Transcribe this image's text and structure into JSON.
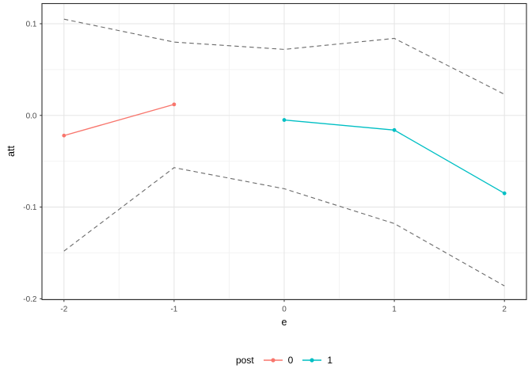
{
  "chart_data": {
    "type": "line",
    "title": "",
    "xlabel": "e",
    "ylabel": "att",
    "xlim": [
      -2.2,
      2.2
    ],
    "ylim": [
      -0.201,
      0.122
    ],
    "x_ticks": [
      -2,
      -1,
      0,
      1,
      2
    ],
    "x_tick_labels": [
      "-2",
      "-1",
      "0",
      "1",
      "2"
    ],
    "y_ticks": [
      0.1,
      0.0,
      -0.1,
      -0.2
    ],
    "y_tick_labels": [
      "0.1",
      "0.0",
      "-0.1",
      "-0.2"
    ],
    "grid": {
      "major": true,
      "minor": true
    },
    "legend": {
      "title": "post",
      "position": "bottom",
      "entries": [
        {
          "label": "0",
          "color": "#F8766D"
        },
        {
          "label": "1",
          "color": "#00BFC4"
        }
      ]
    },
    "series": [
      {
        "name": "post-0",
        "legend_label": "0",
        "type": "line+point",
        "color": "#F8766D",
        "dash": false,
        "x": [
          -2,
          -1
        ],
        "y": [
          -0.022,
          0.012
        ]
      },
      {
        "name": "post-1",
        "legend_label": "1",
        "type": "line+point",
        "color": "#00BFC4",
        "dash": false,
        "x": [
          0,
          1,
          2
        ],
        "y": [
          -0.005,
          -0.016,
          -0.085
        ]
      },
      {
        "name": "conf-band-upper",
        "type": "line",
        "color": "#6A6A6A",
        "dash": true,
        "x": [
          -2,
          -1,
          0,
          1,
          2
        ],
        "y": [
          0.105,
          0.08,
          0.072,
          0.084,
          0.023
        ]
      },
      {
        "name": "conf-band-lower",
        "type": "line",
        "color": "#6A6A6A",
        "dash": true,
        "x": [
          -2,
          -1,
          0,
          1,
          2
        ],
        "y": [
          -0.148,
          -0.057,
          -0.08,
          -0.118,
          -0.186
        ]
      }
    ],
    "colors": {
      "panel_background": "#ffffff",
      "panel_border": "#2f2f2f",
      "grid_major": "#e5e5e5",
      "grid_minor": "#f2f2f2",
      "tick_mark": "#333333",
      "tick_label": "#4d4d4d",
      "axis_title": "#000000",
      "band_line": "#6A6A6A"
    }
  }
}
